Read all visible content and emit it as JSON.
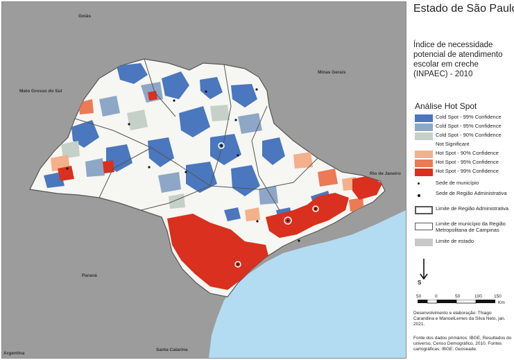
{
  "title": "Estado de São Paulo",
  "subtitle": "Índice de necessidade potencial de atendimento escolar em creche (INPAEC) - 2010",
  "legend": {
    "title": "Análise Hot Spot",
    "classes": [
      {
        "label": "Cold Spot - 99% Confidence",
        "color": "#4a77bd"
      },
      {
        "label": "Cold Spot - 95% Confidence",
        "color": "#8ea7c7"
      },
      {
        "label": "Cold Spot - 90% Confidence",
        "color": "#c5d0c8"
      },
      {
        "label": "Not Significant",
        "color": "#ffffff"
      },
      {
        "label": "Hot Spot - 90% Confidence",
        "color": "#f4b08a"
      },
      {
        "label": "Hot Spot - 95% Confidence",
        "color": "#ec7a55"
      },
      {
        "label": "Hot Spot - 99% Confidence",
        "color": "#d9301f"
      }
    ],
    "symbols": {
      "sede_municipio": "Sede de município",
      "sede_regiao": "Sede de Região Administrativa",
      "limite_regiao": "Limite de Região Administrativa",
      "limite_municipio_rmc": "Limite de município da Região Metropolitana de Campinas",
      "limite_estado": "Limite de estado"
    }
  },
  "north": {
    "letter": "S"
  },
  "scale": {
    "ticks": [
      "50",
      "0",
      "50",
      "100",
      "150"
    ],
    "unit": "Km"
  },
  "credits": {
    "authors": "Desenvolvimento e elaboração: Thiago Carandina e ManoelLemes da Silva Neto, jan. 2021.",
    "sources": "Fonte dos dados primários: IBGE, Resultados do universo, Censo Demográfico, 2010. Fontes cartográficas: IBGE; Geoseade."
  },
  "map_labels": {
    "goias": "Goiás",
    "mato_grosso_do_sul": "Mato Grosso do Sul",
    "minas_gerais": "Minas Gerais",
    "rio_de_janeiro": "Rio de Janeiro",
    "parana": "Paraná",
    "santa_catarina": "Santa Catarina",
    "argentina": "Argentina"
  },
  "colors": {
    "land": "#9c9c9c",
    "sea": "#b3dcf3",
    "state_fill": "#f6f6f2"
  }
}
